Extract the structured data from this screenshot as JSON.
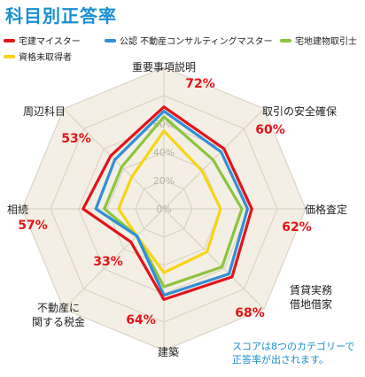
{
  "title": "科目別正答率",
  "note_lines": [
    "スコアは8つのカテゴリーで",
    "正答率が出されます。"
  ],
  "chart_data": {
    "type": "radar",
    "title": "科目別正答率",
    "max": 100,
    "tick_values": [
      0,
      20,
      40,
      60
    ],
    "tick_labels": [
      "0%",
      "20%",
      "40%",
      "60%"
    ],
    "categories": [
      {
        "label": [
          "重要事項説明"
        ],
        "pct_label": "72%"
      },
      {
        "label": [
          "取引の安全確保"
        ],
        "pct_label": "60%"
      },
      {
        "label": [
          "価格査定"
        ],
        "pct_label": "62%"
      },
      {
        "label": [
          "賃貸実務",
          "借地借家"
        ],
        "pct_label": "68%"
      },
      {
        "label": [
          "建築"
        ],
        "pct_label": "64%"
      },
      {
        "label": [
          "不動産に",
          "関する税金"
        ],
        "pct_label": "33%"
      },
      {
        "label": [
          "相続"
        ],
        "pct_label": "57%"
      },
      {
        "label": [
          "周辺科目"
        ],
        "pct_label": "53%"
      }
    ],
    "series": [
      {
        "name": "宅建マイスター",
        "color": "#e2141b",
        "values": [
          72,
          60,
          62,
          68,
          64,
          33,
          57,
          53
        ]
      },
      {
        "name": "公認 不動産コンサルティングマスター",
        "color": "#2f8fd8",
        "values": [
          69,
          57,
          59,
          65,
          61,
          27,
          48,
          49
        ]
      },
      {
        "name": "宅地建物取引士",
        "color": "#8cc43d",
        "values": [
          65,
          49,
          55,
          58,
          55,
          27,
          42,
          42
        ]
      },
      {
        "name": "資格未取得者",
        "color": "#f7d416",
        "values": [
          55,
          38,
          40,
          43,
          45,
          27,
          32,
          32
        ]
      }
    ],
    "grid_fill": "#f4efe4",
    "grid_line": "#d6cfc2"
  }
}
